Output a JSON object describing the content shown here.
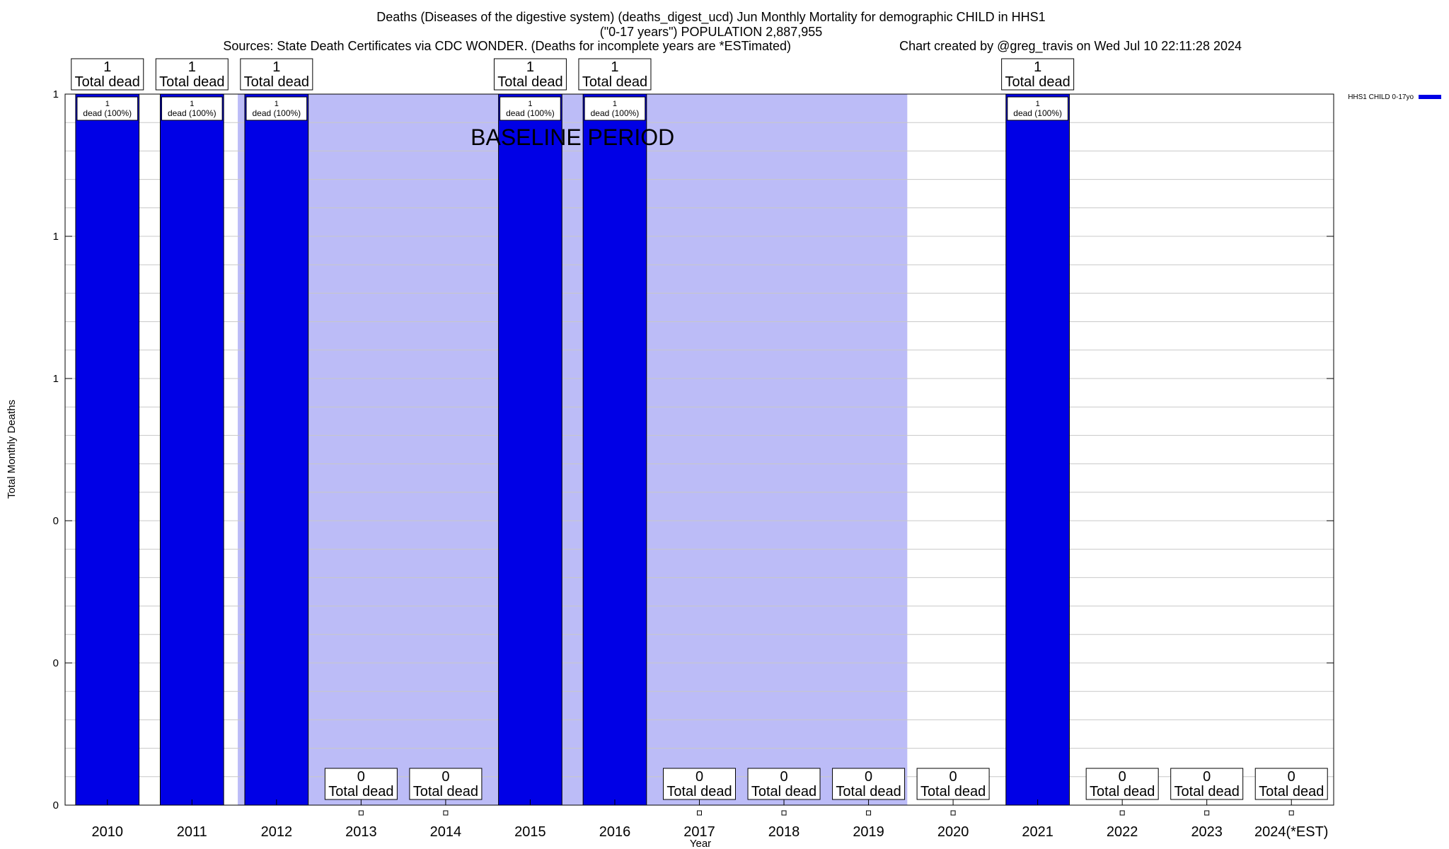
{
  "chart_data": {
    "type": "bar",
    "title_lines": [
      "Deaths (Diseases of the digestive system) (deaths_digest_ucd) Jun Monthly Mortality for demographic CHILD in HHS1",
      "(\"0-17 years\") POPULATION 2,887,955"
    ],
    "sources": "Sources: State Death Certificates via CDC WONDER. (Deaths for incomplete years are *ESTimated)",
    "created": "Chart created by @greg_travis on Wed Jul 10 22:11:28 2024",
    "xlabel": "Year",
    "ylabel": "Total Monthly Deaths",
    "categories": [
      "2010",
      "2011",
      "2012",
      "2013",
      "2014",
      "2015",
      "2016",
      "2017",
      "2018",
      "2019",
      "2020",
      "2021",
      "2022",
      "2023",
      "2024(*EST)"
    ],
    "series": [
      {
        "name": "HHS1 CHILD 0-17yo",
        "color": "#0000e6",
        "values": [
          1,
          1,
          1,
          0,
          0,
          1,
          1,
          0,
          0,
          0,
          0,
          1,
          0,
          0,
          0
        ]
      }
    ],
    "ylim": [
      0,
      1
    ],
    "ytick_values": [
      0,
      0.2,
      0.4,
      0.6,
      0.8,
      1.0
    ],
    "ytick_labels": [
      "0",
      "0",
      "0",
      "1",
      "1",
      "1"
    ],
    "total_label": "Total dead",
    "bar_label_suffix": "dead (100%)",
    "baseline": {
      "label": "BASELINE PERIOD",
      "from": "2012",
      "to": "2019",
      "color": "#bcbcf7"
    },
    "grid": true,
    "legend_position": "top-right"
  }
}
